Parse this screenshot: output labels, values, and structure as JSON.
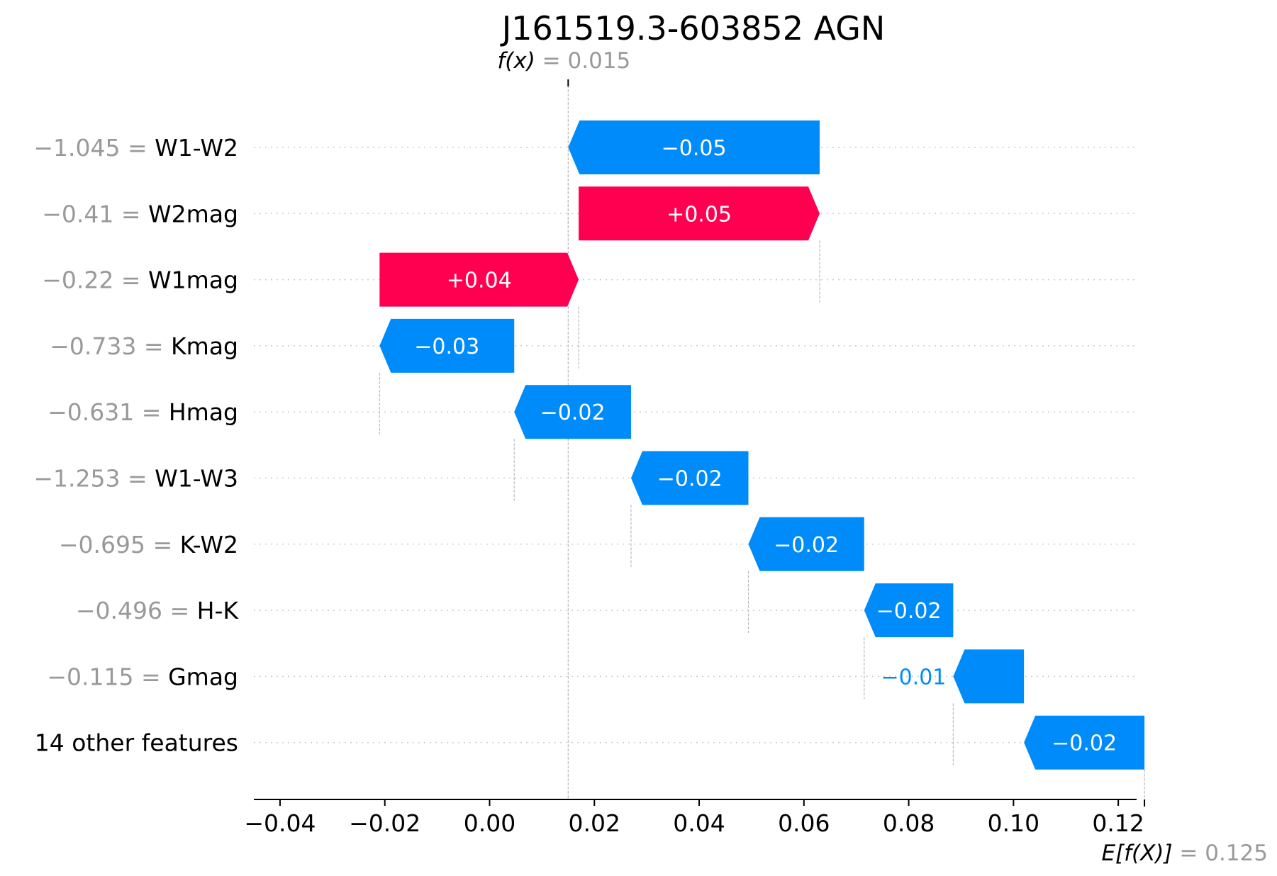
{
  "chart_data": {
    "type": "waterfall",
    "title": "J161519.3-603852 AGN",
    "fx_label": "f(x)",
    "fx_value": 0.015,
    "fx_value_text": "0.015",
    "base_label": "E[f(X)]",
    "base_value": 0.125,
    "base_value_text": "0.125",
    "xlim": [
      -0.045,
      0.1235
    ],
    "xticks": [
      -0.04,
      -0.02,
      0.0,
      0.02,
      0.04,
      0.06,
      0.08,
      0.1,
      0.12
    ],
    "xtick_labels": [
      "−0.04",
      "−0.02",
      "0.00",
      "0.02",
      "0.04",
      "0.06",
      "0.08",
      "0.10",
      "0.12"
    ],
    "features": [
      {
        "name": "W1-W2",
        "value_text": "−1.045",
        "start": 0.063,
        "end": 0.015,
        "label": "−0.05"
      },
      {
        "name": "W2mag",
        "value_text": "−0.41",
        "start": 0.017,
        "end": 0.063,
        "label": "+0.05"
      },
      {
        "name": "W1mag",
        "value_text": "−0.22",
        "start": -0.021,
        "end": 0.017,
        "label": "+0.04"
      },
      {
        "name": "Kmag",
        "value_text": "−0.733",
        "start": 0.0047,
        "end": -0.021,
        "label": "−0.03"
      },
      {
        "name": "Hmag",
        "value_text": "−0.631",
        "start": 0.027,
        "end": 0.0047,
        "label": "−0.02"
      },
      {
        "name": "W1-W3",
        "value_text": "−1.253",
        "start": 0.0494,
        "end": 0.027,
        "label": "−0.02"
      },
      {
        "name": "K-W2",
        "value_text": "−0.695",
        "start": 0.0715,
        "end": 0.0494,
        "label": "−0.02"
      },
      {
        "name": "H-K",
        "value_text": "−0.496",
        "start": 0.0885,
        "end": 0.0715,
        "label": "−0.02"
      },
      {
        "name": "Gmag",
        "value_text": "−0.115",
        "start": 0.102,
        "end": 0.0885,
        "label": "−0.01"
      },
      {
        "name": "14 other features",
        "value_text": "",
        "start": 0.125,
        "end": 0.102,
        "label": "−0.02"
      }
    ],
    "colors": {
      "positive": "#ff0051",
      "negative": "#008bfb",
      "value_text": "#999999",
      "axis": "#000000"
    }
  }
}
